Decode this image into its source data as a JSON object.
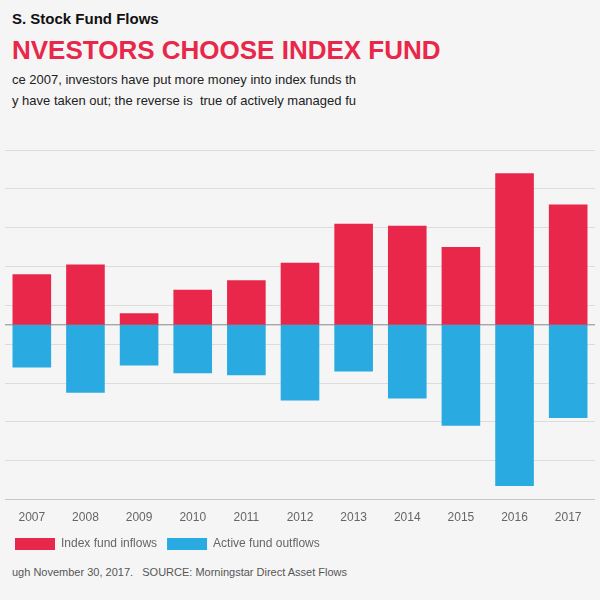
{
  "chart_data": {
    "type": "bar",
    "title": "NVESTORS CHOOSE INDEX FUND",
    "subtitle": [
      "ce 2007, investors have put more money into index funds th",
      "y have taken out; the reverse is  true of actively managed fu"
    ],
    "annotations": [
      "S. Stock Fund Flows",
      "ugh November 30, 2017.   SOURCE: Morningstar Direct Asset Flows"
    ],
    "categories": [
      2007,
      2008,
      2009,
      2010,
      2011,
      2012,
      2013,
      2014,
      2015,
      2016,
      2017
    ],
    "series": [
      {
        "name": "Index fund inflows",
        "color": "#e8274b",
        "values": [
          130,
          155,
          30,
          90,
          115,
          160,
          260,
          255,
          200,
          390,
          310
        ]
      },
      {
        "name": "Active fund outflows",
        "color": "#29abe2",
        "values": [
          -110,
          -175,
          -105,
          -125,
          -130,
          -195,
          -120,
          -190,
          -260,
          -415,
          -240
        ]
      }
    ],
    "ylim": [
      -450,
      450
    ],
    "yticks": [
      -450,
      -350,
      -250,
      -150,
      -50,
      50,
      150,
      250,
      350,
      450
    ],
    "stacked": true,
    "grid": true,
    "legend": "lower left",
    "tick_labels": "x"
  }
}
